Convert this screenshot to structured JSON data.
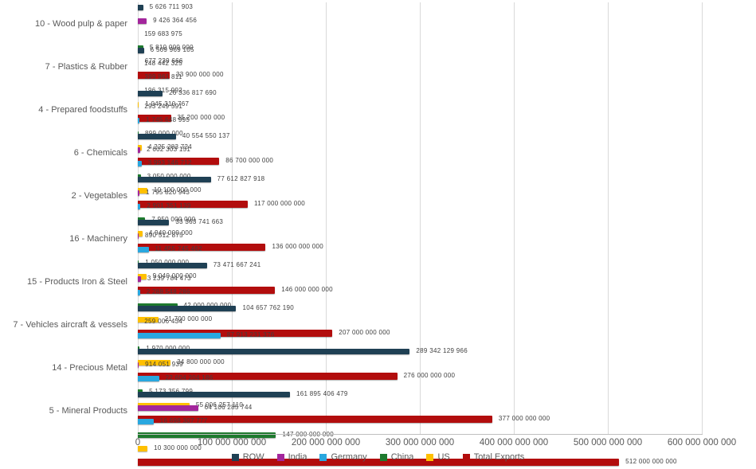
{
  "chart_data": {
    "type": "bar",
    "orientation": "horizontal",
    "title": "",
    "xlabel": "",
    "ylabel": "",
    "xlim": [
      0,
      600000000000
    ],
    "x_tick_step": 100000000000,
    "x_tick_values": [
      0,
      100000000000,
      200000000000,
      300000000000,
      400000000000,
      500000000000,
      600000000000
    ],
    "x_tick_labels": [
      "0",
      "100 000 000 000",
      "200 000 000 000",
      "300 000 000 000",
      "400 000 000 000",
      "500 000 000 000",
      "600 000 000 000"
    ],
    "grid": "vertical",
    "legend_position": "bottom",
    "categories": [
      "10 - Wood pulp & paper",
      "7 - Plastics & Rubber",
      "4 - Prepared foodstuffs",
      "6 - Chemicals",
      "2 - Vegetables",
      "16 - Machinery",
      "15 - Products Iron & Steel",
      "7 - Vehicles aircraft & vessels",
      "14 - Precious Metal",
      "5 - Mineral Products"
    ],
    "series": [
      {
        "name": "ROW",
        "color": "#1f4054",
        "values": [
          5626711903,
          6509969105,
          26336817690,
          40554550137,
          77612827918,
          33363741663,
          73471667241,
          104657762190,
          289342129966,
          161895406479
        ]
      },
      {
        "name": "India",
        "color": "#a3269c",
        "values": [
          9426364456,
          148442325,
          293249591,
          2602303151,
          1795820943,
          890512875,
          3239784473,
          259006434,
          914051939,
          64106285744
        ]
      },
      {
        "name": "Germany",
        "color": "#29a7df",
        "values": [
          159683975,
          399961811,
          1745648995,
          3993146712,
          2901351139,
          11455745462,
          2288548286,
          87913231376,
          22604204186,
          16698307777
        ]
      },
      {
        "name": "China",
        "color": "#1e7a2e",
        "values": [
          5810000000,
          196315992,
          899000000,
          3050000000,
          7950000000,
          1050000000,
          42000000000,
          1970000000,
          5173356799,
          147000000000
        ]
      },
      {
        "name": "US",
        "color": "#ffc000",
        "values": [
          677239666,
          1045310767,
          4225283724,
          10100000000,
          4940000000,
          9040000000,
          21700000000,
          34800000000,
          55006257110,
          10300000000
        ]
      },
      {
        "name": "Total Exports",
        "color": "#b20d0d",
        "values": [
          33900000000,
          35200000000,
          86700000000,
          117000000000,
          136000000000,
          146000000000,
          207000000000,
          276000000000,
          377000000000,
          512000000000
        ]
      }
    ],
    "colors": {
      "grid": "#d9d9d9",
      "axis_text": "#595959",
      "value_label_text": "#3f3f3f"
    }
  }
}
